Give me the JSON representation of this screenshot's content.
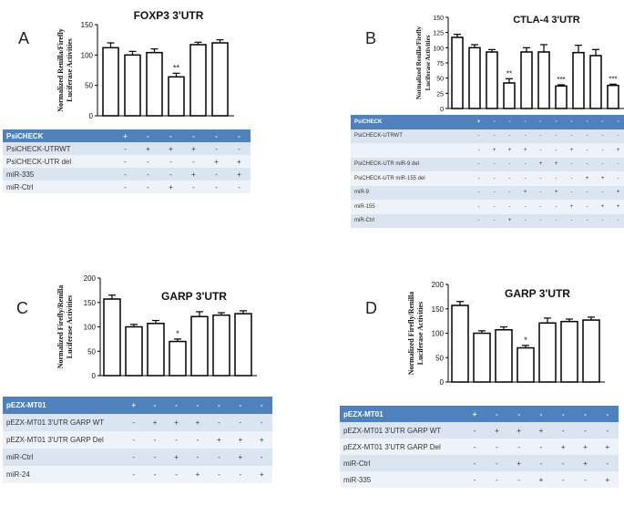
{
  "panels": [
    {
      "letter": "A",
      "chart_data": {
        "type": "bar",
        "title": "FOXP3 3'UTR",
        "ylabel": [
          "Normalized Renilla/Firefly",
          "Luciferase Activities"
        ],
        "ylim": [
          0,
          150
        ],
        "yticks": [
          "0",
          "50",
          "100",
          "150"
        ],
        "values": [
          112,
          100,
          104,
          64,
          117,
          120
        ],
        "errors": [
          8,
          6,
          6,
          6,
          4,
          5
        ],
        "significance": [
          "",
          "",
          "",
          "**",
          "",
          ""
        ]
      },
      "table": {
        "rows": [
          {
            "label": "PsiCHECK",
            "cells": [
              "+",
              "-",
              "-",
              "-",
              "-",
              "-"
            ]
          },
          {
            "label": "PsiCHECK-UTRWT",
            "cells": [
              "-",
              "+",
              "+",
              "+",
              "-",
              "-"
            ]
          },
          {
            "label": "PsiCHECK-UTR del",
            "cells": [
              "-",
              "-",
              "-",
              "-",
              "+",
              "+"
            ]
          },
          {
            "label": "miR-335",
            "cells": [
              "-",
              "-",
              "-",
              "+",
              "-",
              "+"
            ]
          },
          {
            "label": "miR-Ctrl",
            "cells": [
              "-",
              "-",
              "+",
              "-",
              "-",
              "-"
            ]
          }
        ]
      }
    },
    {
      "letter": "B",
      "chart_data": {
        "type": "bar",
        "title": "CTLA-4 3'UTR",
        "ylabel": [
          "Normalized Renilla/Firefly",
          "Luciferase Activities"
        ],
        "ylim": [
          0,
          150
        ],
        "yticks": [
          "0",
          "25",
          "50",
          "75",
          "100",
          "125",
          "150"
        ],
        "values": [
          117,
          100,
          93,
          42,
          93,
          93,
          37,
          92,
          87,
          38
        ],
        "errors": [
          5,
          5,
          4,
          7,
          7,
          12,
          2,
          12,
          10,
          2
        ],
        "significance": [
          "",
          "",
          "",
          "**",
          "",
          "",
          "***",
          "",
          "",
          "***"
        ]
      },
      "table": {
        "rows": [
          {
            "label": "PsiCHECK",
            "cells": [
              "+",
              "-",
              "-",
              "-",
              "-",
              "-",
              "-",
              "-",
              "-",
              "-"
            ]
          },
          {
            "label": "PsiCHECK-UTRWT",
            "cells": [
              "-",
              "-",
              "-",
              "-",
              "-",
              "-",
              "-",
              "-",
              "-",
              "-"
            ]
          },
          {
            "label": "",
            "cells": [
              "-",
              "+",
              "+",
              "+",
              "-",
              "-",
              "+",
              "-",
              "-",
              "+"
            ]
          },
          {
            "label": "PsiCHECK-UTR miR-9 del",
            "cells": [
              "-",
              "-",
              "-",
              "-",
              "+",
              "+",
              "-",
              "-",
              "-",
              "-"
            ]
          },
          {
            "label": "PsiCHECK-UTR miR-155 del",
            "cells": [
              "-",
              "-",
              "-",
              "-",
              "-",
              "-",
              "-",
              "+",
              "+",
              "-"
            ]
          },
          {
            "label": "miR-9",
            "cells": [
              "-",
              "-",
              "-",
              "+",
              "-",
              "+",
              "-",
              "-",
              "-",
              "+"
            ]
          },
          {
            "label": "miR-155",
            "cells": [
              "-",
              "-",
              "-",
              "-",
              "-",
              "-",
              "+",
              "-",
              "+",
              "+"
            ]
          },
          {
            "label": "miR-Ctrl",
            "cells": [
              "-",
              "-",
              "+",
              "-",
              "-",
              "-",
              "-",
              "-",
              "-",
              "-"
            ]
          }
        ]
      }
    },
    {
      "letter": "C",
      "chart_data": {
        "type": "bar",
        "title": "GARP 3'UTR",
        "ylabel": [
          "Normalized Firefly/Renilla",
          "Luciferase Activities"
        ],
        "ylim": [
          0,
          200
        ],
        "yticks": [
          "0",
          "50",
          "100",
          "150",
          "200"
        ],
        "values": [
          157,
          100,
          107,
          70,
          121,
          124,
          127
        ],
        "errors": [
          8,
          5,
          6,
          5,
          10,
          5,
          6
        ],
        "significance": [
          "",
          "",
          "",
          "*",
          "",
          "",
          ""
        ]
      },
      "table": {
        "rows": [
          {
            "label": "pEZX-MT01",
            "cells": [
              "+",
              "-",
              "-",
              "-",
              "-",
              "-",
              "-"
            ]
          },
          {
            "label": "pEZX-MT01 3'UTR GARP WT",
            "cells": [
              "-",
              "+",
              "+",
              "+",
              "-",
              "-",
              "-"
            ]
          },
          {
            "label": "pEZX-MT01 3'UTR GARP Del",
            "cells": [
              "-",
              "-",
              "-",
              "-",
              "+",
              "+",
              "+"
            ]
          },
          {
            "label": "miR-Ctrl",
            "cells": [
              "-",
              "-",
              "+",
              "-",
              "-",
              "+",
              "-"
            ]
          },
          {
            "label": "miR-24",
            "cells": [
              "-",
              "-",
              "-",
              "+",
              "-",
              "-",
              "+"
            ]
          }
        ]
      }
    },
    {
      "letter": "D",
      "chart_data": {
        "type": "bar",
        "title": "GARP 3'UTR",
        "ylabel": [
          "Normalized Firefly/Renilla",
          "Luciferase Activities"
        ],
        "ylim": [
          0,
          200
        ],
        "yticks": [
          "0",
          "50",
          "100",
          "150",
          "200"
        ],
        "values": [
          157,
          100,
          107,
          70,
          121,
          124,
          127
        ],
        "errors": [
          8,
          5,
          6,
          5,
          10,
          5,
          6
        ],
        "significance": [
          "",
          "",
          "",
          "*",
          "",
          "",
          ""
        ]
      },
      "table": {
        "rows": [
          {
            "label": "pEZX-MT01",
            "cells": [
              "+",
              "-",
              "-",
              "-",
              "-",
              "-",
              "-"
            ]
          },
          {
            "label": "pEZX-MT01 3'UTR GARP WT",
            "cells": [
              "-",
              "+",
              "+",
              "+",
              "-",
              "-",
              "-"
            ]
          },
          {
            "label": "pEZX-MT01 3'UTR GARP Del",
            "cells": [
              "-",
              "-",
              "-",
              "-",
              "+",
              "+",
              "+"
            ]
          },
          {
            "label": "miR-Ctrl",
            "cells": [
              "-",
              "-",
              "+",
              "-",
              "-",
              "+",
              "-"
            ]
          },
          {
            "label": "miR-335",
            "cells": [
              "-",
              "-",
              "-",
              "+",
              "-",
              "-",
              "+"
            ]
          }
        ]
      }
    }
  ]
}
